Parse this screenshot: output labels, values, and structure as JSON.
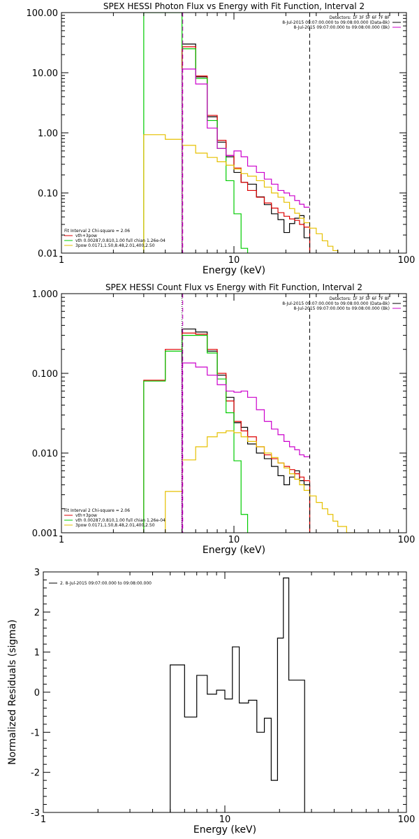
{
  "panels": [
    {
      "title": "SPEX HESSI Photon Flux vs Energy with Fit Function, Interval 2",
      "xlabel": "Energy (keV)",
      "ylabel": "",
      "xscale": "log",
      "yscale": "log",
      "xlim": [
        1,
        100
      ],
      "ylim": [
        0.01,
        100
      ],
      "xtick_labels": [
        "1",
        "10",
        "100"
      ],
      "xtick_values": [
        1,
        10,
        100
      ],
      "ytick_labels": [
        "0.01",
        "0.10",
        "1.00",
        "10.00",
        "100.00"
      ],
      "ytick_values": [
        0.01,
        0.1,
        1,
        10,
        100
      ],
      "header_lines": [
        "Detectors: 1F 3F 5F 6F 7F 8F",
        "8-Jul-2015 09:07:00.000 to 09:08:00.000 (Data-Bk)",
        "8-Jul-2015 09:07:00.000 to 09:08:00.000 (Bk)"
      ],
      "header_colors": [
        "#000000",
        "#000000",
        "#cc00cc"
      ],
      "legend_title": "Fit Interval 2   Chi-square = 2.06",
      "legend_entries": [
        {
          "label": "vth+3pow",
          "color": "#dd0000"
        },
        {
          "label": "vth 0.00287,0.810,1.00   full chian 1.26e-04",
          "color": "#00cc00"
        },
        {
          "label": "3pow 0.0171,1.50,8.48,2.01,400,2.50",
          "color": "#e6c000"
        }
      ],
      "vlines": [
        {
          "x": 5.0,
          "style": "dotted",
          "color": "#00cc00"
        },
        {
          "x": 5.05,
          "style": "dashed",
          "color": "#cc00cc"
        },
        {
          "x": 27.5,
          "style": "dashed",
          "color": "#000000"
        }
      ],
      "series": [
        {
          "label": "Data-Bk",
          "color": "#000000",
          "edges": [
            5.0,
            6.0,
            7.0,
            8.0,
            9.0,
            10.0,
            11.0,
            12.0,
            13.5,
            15.0,
            16.5,
            18.0,
            19.5,
            21.0,
            22.5,
            24.0,
            25.5,
            27.5
          ],
          "values": [
            30.0,
            8.5,
            1.85,
            0.7,
            0.4,
            0.22,
            0.15,
            0.14,
            0.086,
            0.064,
            0.045,
            0.036,
            0.022,
            0.031,
            0.038,
            0.042,
            0.018
          ]
        },
        {
          "label": "vth+3pow",
          "color": "#dd0000",
          "edges": [
            5.0,
            6.0,
            7.0,
            8.0,
            9.0,
            10.0,
            11.0,
            12.0,
            13.5,
            15.0,
            16.5,
            18.0,
            19.5,
            21.0,
            22.5,
            24.0,
            25.5,
            27.5
          ],
          "values": [
            27.0,
            8.8,
            1.95,
            0.75,
            0.42,
            0.26,
            0.15,
            0.11,
            0.085,
            0.068,
            0.056,
            0.047,
            0.041,
            0.037,
            0.035,
            0.03,
            0.027
          ]
        },
        {
          "label": "vth",
          "color": "#00cc00",
          "edges": [
            3.0,
            4.0,
            5.0,
            6.0,
            7.0,
            8.0,
            9.0,
            10.0,
            11.0,
            12.0
          ],
          "values": [
            100,
            100,
            25.0,
            8.0,
            1.6,
            0.55,
            0.16,
            0.045,
            0.012
          ]
        },
        {
          "label": "3pow",
          "color": "#e6c000",
          "edges": [
            3.0,
            4.0,
            5.0,
            6.0,
            7.0,
            8.0,
            9.0,
            10.0,
            11.0,
            12.0,
            13.5,
            15.0,
            16.5,
            18.0,
            19.5,
            21.0,
            22.5,
            24.0,
            25.5,
            27.5,
            30.0,
            32.5,
            35.0,
            37.5,
            40.0
          ],
          "values": [
            0.93,
            0.78,
            0.62,
            0.46,
            0.39,
            0.33,
            0.29,
            0.25,
            0.21,
            0.19,
            0.16,
            0.125,
            0.1,
            0.085,
            0.07,
            0.055,
            0.046,
            0.038,
            0.032,
            0.026,
            0.021,
            0.016,
            0.013,
            0.011
          ]
        },
        {
          "label": "Bk",
          "color": "#cc00cc",
          "edges": [
            5.0,
            6.0,
            7.0,
            8.0,
            9.0,
            10.0,
            11.0,
            12.0,
            13.5,
            15.0,
            16.5,
            18.0,
            19.5,
            21.0,
            22.5,
            24.0,
            25.5,
            27.5
          ],
          "values": [
            11.5,
            6.5,
            1.2,
            0.55,
            0.42,
            0.5,
            0.4,
            0.28,
            0.22,
            0.17,
            0.14,
            0.11,
            0.1,
            0.09,
            0.075,
            0.065,
            0.058,
            0.058
          ]
        }
      ]
    },
    {
      "title": "SPEX HESSI Count Flux vs Energy with Fit Function, Interval 2",
      "xlabel": "Energy (keV)",
      "ylabel": "",
      "xscale": "log",
      "yscale": "log",
      "xlim": [
        1,
        100
      ],
      "ylim": [
        0.001,
        1
      ],
      "xtick_labels": [
        "1",
        "10",
        "100"
      ],
      "xtick_values": [
        1,
        10,
        100
      ],
      "ytick_labels": [
        "0.001",
        "0.010",
        "0.100",
        "1.000"
      ],
      "ytick_values": [
        0.001,
        0.01,
        0.1,
        1
      ],
      "header_lines": [
        "Detectors: 1F 3F 5F 6F 7F 8F",
        "8-Jul-2015 09:07:00.000 to 09:08:00.000 (Data-Bk)",
        "8-Jul-2015 09:07:00.000 to 09:08:00.000 (Bk)"
      ],
      "header_colors": [
        "#000000",
        "#000000",
        "#cc00cc"
      ],
      "legend_title": "Fit Interval 2   Chi-square = 2.06",
      "legend_entries": [
        {
          "label": "vth+3pow",
          "color": "#dd0000"
        },
        {
          "label": "vth 0.00287,0.810,1.00   full chian 1.26e-04",
          "color": "#00cc00"
        },
        {
          "label": "3pow 0.0171,1.50,8.48,2.01,400,2.50",
          "color": "#e6c000"
        }
      ],
      "vlines": [
        {
          "x": 5.0,
          "style": "dotted",
          "color": "#000000"
        },
        {
          "x": 5.05,
          "style": "dashed",
          "color": "#cc00cc"
        },
        {
          "x": 27.5,
          "style": "dashed",
          "color": "#000000"
        }
      ],
      "series": [
        {
          "label": "Data-Bk",
          "color": "#000000",
          "edges": [
            5.0,
            6.0,
            7.0,
            8.0,
            9.0,
            10.0,
            11.0,
            12.0,
            13.5,
            15.0,
            16.5,
            18.0,
            19.5,
            21.0,
            22.5,
            24.0,
            25.5,
            27.5
          ],
          "values": [
            0.36,
            0.33,
            0.19,
            0.095,
            0.05,
            0.024,
            0.021,
            0.013,
            0.01,
            0.0085,
            0.0068,
            0.0052,
            0.004,
            0.005,
            0.006,
            0.0045,
            0.004
          ]
        },
        {
          "label": "vth+3pow",
          "color": "#dd0000",
          "edges": [
            3.0,
            4.0,
            5.0,
            6.0,
            7.0,
            8.0,
            9.0,
            10.0,
            11.0,
            12.0,
            13.5,
            15.0,
            16.5,
            18.0,
            19.5,
            21.0,
            22.5,
            24.0,
            25.5,
            27.5
          ],
          "values": [
            0.082,
            0.2,
            0.32,
            0.31,
            0.2,
            0.1,
            0.045,
            0.025,
            0.019,
            0.016,
            0.012,
            0.0095,
            0.0085,
            0.0075,
            0.0068,
            0.0062,
            0.0055,
            0.005,
            0.0045
          ]
        },
        {
          "label": "vth",
          "color": "#00cc00",
          "edges": [
            3.0,
            4.0,
            5.0,
            6.0,
            7.0,
            8.0,
            9.0,
            10.0,
            11.0,
            12.0
          ],
          "values": [
            0.08,
            0.19,
            0.3,
            0.3,
            0.18,
            0.085,
            0.032,
            0.008,
            0.0017
          ]
        },
        {
          "label": "3pow",
          "color": "#e6c000",
          "edges": [
            4.0,
            5.0,
            6.0,
            7.0,
            8.0,
            9.0,
            10.0,
            11.0,
            12.0,
            13.5,
            15.0,
            16.5,
            18.0,
            19.5,
            21.0,
            22.5,
            24.0,
            25.5,
            27.5,
            30.0,
            32.5,
            35.0,
            37.5,
            40.0,
            45.0,
            50.0
          ],
          "values": [
            0.0033,
            0.0082,
            0.012,
            0.016,
            0.018,
            0.019,
            0.018,
            0.016,
            0.014,
            0.012,
            0.01,
            0.0088,
            0.0075,
            0.0065,
            0.0055,
            0.0047,
            0.004,
            0.0034,
            0.0029,
            0.0024,
            0.002,
            0.0017,
            0.0014,
            0.0012,
            0.001
          ]
        },
        {
          "label": "Bk",
          "color": "#cc00cc",
          "edges": [
            5.0,
            6.0,
            7.0,
            8.0,
            9.0,
            10.0,
            11.0,
            12.0,
            13.5,
            15.0,
            16.5,
            18.0,
            19.5,
            21.0,
            22.5,
            24.0,
            25.5,
            27.5
          ],
          "values": [
            0.135,
            0.12,
            0.095,
            0.072,
            0.06,
            0.058,
            0.06,
            0.05,
            0.035,
            0.025,
            0.02,
            0.017,
            0.014,
            0.012,
            0.011,
            0.0095,
            0.009,
            0.0088
          ]
        }
      ]
    },
    {
      "title": "",
      "xlabel": "Energy (keV)",
      "ylabel": "Normalized Residuals (sigma)",
      "xscale": "log",
      "yscale": "linear",
      "xlim": [
        1,
        100
      ],
      "ylim": [
        -3,
        3
      ],
      "xtick_labels": [
        "1",
        "10",
        "100"
      ],
      "xtick_values": [
        1,
        10,
        100
      ],
      "ytick_labels": [
        "-3",
        "-2",
        "-1",
        "0",
        "1",
        "2",
        "3"
      ],
      "ytick_values": [
        -3,
        -2,
        -1,
        0,
        1,
        2,
        3
      ],
      "header_lines": [],
      "header_colors": [],
      "legend_title": "",
      "legend_entries": [
        {
          "label": "2.  8-Jul-2015 09:07:00.000 to 09:08:00.000",
          "color": "#000000"
        }
      ],
      "vlines": [],
      "series": [
        {
          "label": "Residuals",
          "color": "#000000",
          "edges": [
            5.0,
            6.0,
            7.0,
            8.0,
            9.0,
            10.0,
            11.0,
            12.0,
            13.5,
            15.0,
            16.5,
            18.0,
            19.5,
            21.0,
            22.5,
            24.0,
            25.5,
            27.5
          ],
          "values": [
            0.68,
            -0.62,
            0.42,
            -0.05,
            0.05,
            -0.17,
            1.13,
            -0.27,
            -0.2,
            -1.0,
            -0.65,
            -2.2,
            1.35,
            2.85,
            0.3,
            0.3,
            0.3
          ],
          "drop_to_floor": true
        }
      ]
    }
  ],
  "chart_data": [
    {
      "type": "line",
      "title": "SPEX HESSI Photon Flux vs Energy with Fit Function, Interval 2",
      "xlabel": "Energy (keV)",
      "xlim": [
        1,
        100
      ],
      "ylim": [
        0.01,
        100
      ],
      "xscale": "log",
      "yscale": "log"
    },
    {
      "type": "line",
      "title": "SPEX HESSI Count Flux vs Energy with Fit Function, Interval 2",
      "xlabel": "Energy (keV)",
      "xlim": [
        1,
        100
      ],
      "ylim": [
        0.001,
        1
      ],
      "xscale": "log",
      "yscale": "log"
    },
    {
      "type": "line",
      "title": "",
      "xlabel": "Energy (keV)",
      "ylabel": "Normalized Residuals (sigma)",
      "xlim": [
        1,
        100
      ],
      "ylim": [
        -3,
        3
      ],
      "xscale": "log",
      "yscale": "linear"
    }
  ]
}
